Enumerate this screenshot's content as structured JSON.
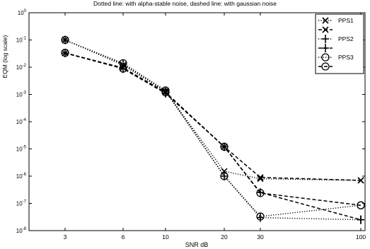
{
  "chart_data": {
    "type": "line",
    "title": "Dotted line: with alpha-stable noise, dashed line: with gaussian noise",
    "xlabel": "SNR dB",
    "ylabel": "EQM (log scale)",
    "y_scale": "log",
    "ylim": [
      1e-08,
      1
    ],
    "x_tick_labels": [
      "3",
      "6",
      "10",
      "20",
      "30",
      "100"
    ],
    "y_tick_labels": [
      {
        "value": 1,
        "base": "10",
        "exp": "0"
      },
      {
        "value": 0.1,
        "base": "10",
        "exp": "-1"
      },
      {
        "value": 0.01,
        "base": "10",
        "exp": "-2"
      },
      {
        "value": 0.001,
        "base": "10",
        "exp": "-3"
      },
      {
        "value": 0.0001,
        "base": "10",
        "exp": "-4"
      },
      {
        "value": 1e-05,
        "base": "10",
        "exp": "-5"
      },
      {
        "value": 1e-06,
        "base": "10",
        "exp": "-6"
      },
      {
        "value": 1e-07,
        "base": "10",
        "exp": "-7"
      },
      {
        "value": 1e-08,
        "base": "10",
        "exp": "-8"
      }
    ],
    "grid": false,
    "legend_position": "top-right",
    "series": [
      {
        "name": "PPS1",
        "marker": "x",
        "dash": "dotted",
        "values": [
          0.1,
          0.012,
          0.0013,
          1.5e-06,
          8e-07,
          7e-07
        ]
      },
      {
        "name": "",
        "marker": "x",
        "dash": "dashed",
        "values": [
          0.033,
          0.0095,
          0.0012,
          1.2e-05,
          9e-07,
          7e-07
        ]
      },
      {
        "name": "PPS2",
        "marker": "+",
        "dash": "dotted",
        "values": [
          0.1,
          0.013,
          0.0013,
          1e-06,
          3e-08,
          2.5e-08
        ]
      },
      {
        "name": "",
        "marker": "+",
        "dash": "dashed",
        "values": [
          0.033,
          0.0088,
          0.0011,
          1.2e-05,
          2.5e-07,
          2.5e-08
        ]
      },
      {
        "name": "PPS3",
        "marker": "o",
        "dash": "dotted",
        "values": [
          0.1,
          0.014,
          0.0014,
          1e-06,
          3.3e-08,
          8.5e-08
        ]
      },
      {
        "name": "",
        "marker": "o",
        "dash": "dashed",
        "values": [
          0.034,
          0.0089,
          0.0012,
          1.2e-05,
          2.4e-07,
          8.5e-08
        ]
      }
    ]
  }
}
